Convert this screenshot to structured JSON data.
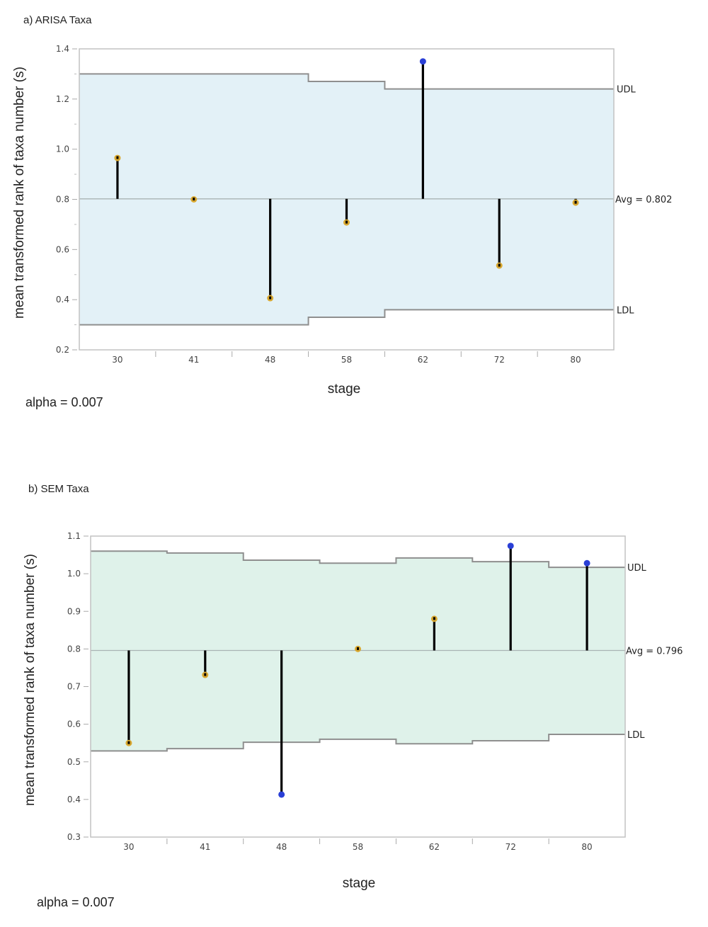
{
  "chart_data": [
    {
      "type": "needle",
      "title": "a) ARISA Taxa",
      "xlabel": "stage",
      "ylabel": "mean transformed rank of taxa number (s)",
      "categories": [
        "30",
        "41",
        "48",
        "58",
        "62",
        "72",
        "80"
      ],
      "values": [
        0.965,
        0.8,
        0.406,
        0.708,
        1.35,
        0.536,
        0.787
      ],
      "point_status": [
        "within",
        "within",
        "within",
        "within",
        "above",
        "within",
        "within"
      ],
      "udl": [
        1.3,
        1.3,
        1.3,
        1.27,
        1.24,
        1.24,
        1.24
      ],
      "ldl": [
        0.3,
        0.3,
        0.3,
        0.33,
        0.36,
        0.36,
        0.36
      ],
      "avg": 0.802,
      "avg_label": "Avg = 0.802",
      "udl_label": "UDL",
      "ldl_label": "LDL",
      "ylim": [
        0.2,
        1.4
      ],
      "yticks": [
        0.2,
        0.4,
        0.6,
        0.8,
        1.0,
        1.2,
        1.4
      ],
      "ytick_labels": [
        "0.2",
        "0.4",
        "0.6",
        "0.8",
        "1.0",
        "1.2",
        "1.4"
      ],
      "yminor": [
        0.3,
        0.5,
        0.7,
        0.9,
        1.1,
        1.3
      ],
      "footnote": "alpha = 0.007",
      "band_color": "#e3f1f7",
      "grid": false
    },
    {
      "type": "needle",
      "title": "b) SEM Taxa",
      "xlabel": "stage",
      "ylabel": "mean transformed rank of taxa number (s)",
      "categories": [
        "30",
        "41",
        "48",
        "58",
        "62",
        "72",
        "80"
      ],
      "values": [
        0.55,
        0.731,
        0.413,
        0.8,
        0.88,
        1.074,
        1.028
      ],
      "point_status": [
        "within",
        "within",
        "below",
        "within",
        "within",
        "above",
        "above"
      ],
      "udl": [
        1.06,
        1.055,
        1.036,
        1.028,
        1.042,
        1.032,
        1.017
      ],
      "ldl": [
        0.529,
        0.535,
        0.552,
        0.56,
        0.548,
        0.556,
        0.573
      ],
      "avg": 0.796,
      "avg_label": "Avg = 0.796",
      "udl_label": "UDL",
      "ldl_label": "LDL",
      "ylim": [
        0.3,
        1.1
      ],
      "yticks": [
        0.3,
        0.4,
        0.5,
        0.6,
        0.7,
        0.8,
        0.9,
        1.0,
        1.1
      ],
      "ytick_labels": [
        "0.3",
        "0.4",
        "0.5",
        "0.6",
        "0.7",
        "0.8",
        "0.9",
        "1.0",
        "1.1"
      ],
      "yminor": [],
      "footnote": "alpha = 0.007",
      "band_color": "#dff2ea",
      "grid": false
    }
  ],
  "colors": {
    "within": "#d9a830",
    "outside": "#2a3fd6",
    "needle": "#000000",
    "limit_line": "#8f8f8f",
    "frame": "#c2c2c2"
  }
}
